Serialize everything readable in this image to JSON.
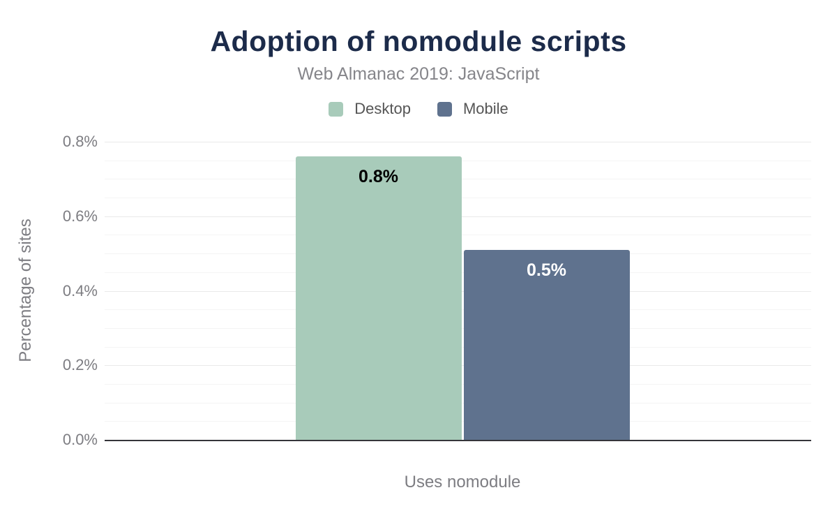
{
  "chart_data": {
    "type": "bar",
    "title": "Adoption of nomodule scripts",
    "subtitle": "Web Almanac 2019: JavaScript",
    "categories": [
      "Uses nomodule"
    ],
    "series": [
      {
        "name": "Desktop",
        "values": [
          0.76
        ],
        "value_labels": [
          "0.8%"
        ],
        "color": "#a8cbba",
        "value_label_color": "#000000"
      },
      {
        "name": "Mobile",
        "values": [
          0.51
        ],
        "value_labels": [
          "0.5%"
        ],
        "color": "#5f728e",
        "value_label_color": "#ffffff"
      }
    ],
    "xlabel": "Uses nomodule",
    "ylabel": "Percentage of sites",
    "ylim": [
      0,
      0.8
    ],
    "yticks": [
      {
        "value": 0.0,
        "label": "0.0%"
      },
      {
        "value": 0.2,
        "label": "0.2%"
      },
      {
        "value": 0.4,
        "label": "0.4%"
      },
      {
        "value": 0.6,
        "label": "0.6%"
      },
      {
        "value": 0.8,
        "label": "0.8%"
      }
    ],
    "minor_grid_step": 0.05,
    "grid": true,
    "legend_position": "top"
  },
  "theme": {
    "bg": "#ffffff",
    "title_color": "#1c2b4a",
    "subtitle_color": "#85858a",
    "axis_text_color": "#7d7d82",
    "legend_text_color": "#555555",
    "baseline_color": "#35353a",
    "grid_major": "#e9e9e9",
    "grid_minor": "#f4f4f4"
  }
}
